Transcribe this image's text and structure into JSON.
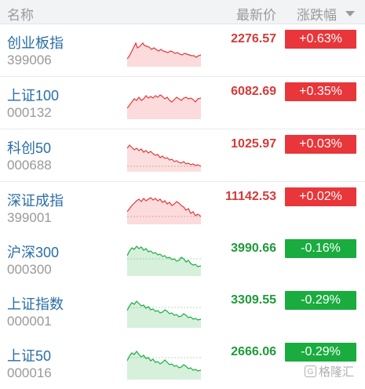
{
  "header": {
    "name_label": "名称",
    "price_label": "最新价",
    "change_label": "涨跌幅"
  },
  "colors": {
    "up": "#e8363a",
    "up_price": "#d63a3a",
    "down": "#1aac3f",
    "down_price": "#1f9a3a"
  },
  "rows": [
    {
      "name": "创业板指",
      "code": "399006",
      "price": "2276.57",
      "change": "+0.63%",
      "direction": "up"
    },
    {
      "name": "上证100",
      "code": "000132",
      "price": "6082.69",
      "change": "+0.35%",
      "direction": "up"
    },
    {
      "name": "科创50",
      "code": "000688",
      "price": "1025.97",
      "change": "+0.03%",
      "direction": "up"
    },
    {
      "name": "深证成指",
      "code": "399001",
      "price": "11142.53",
      "change": "+0.02%",
      "direction": "up"
    },
    {
      "name": "沪深300",
      "code": "000300",
      "price": "3990.66",
      "change": "-0.16%",
      "direction": "down"
    },
    {
      "name": "上证指数",
      "code": "000001",
      "price": "3309.55",
      "change": "-0.29%",
      "direction": "down"
    },
    {
      "name": "上证50",
      "code": "000016",
      "price": "2666.06",
      "change": "-0.29%",
      "direction": "down"
    }
  ],
  "watermark": {
    "text": "格隆汇",
    "icon": "g-logo-icon"
  }
}
